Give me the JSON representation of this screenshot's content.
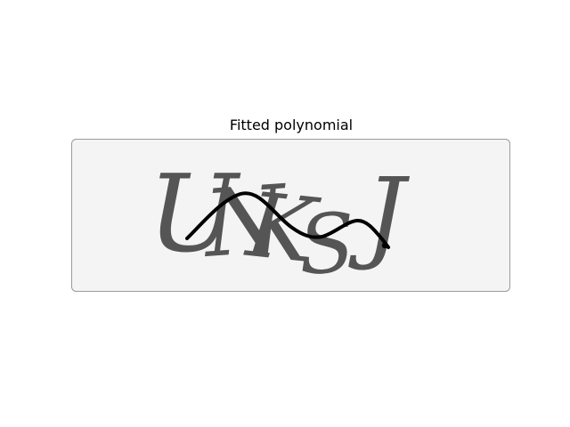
{
  "figure": {
    "title": "Fitted polynomial"
  },
  "captcha": {
    "text": "UNKSJ",
    "glyph_color": "#545454",
    "background_color": "#f4f4f4",
    "curve_color": "#000000"
  }
}
